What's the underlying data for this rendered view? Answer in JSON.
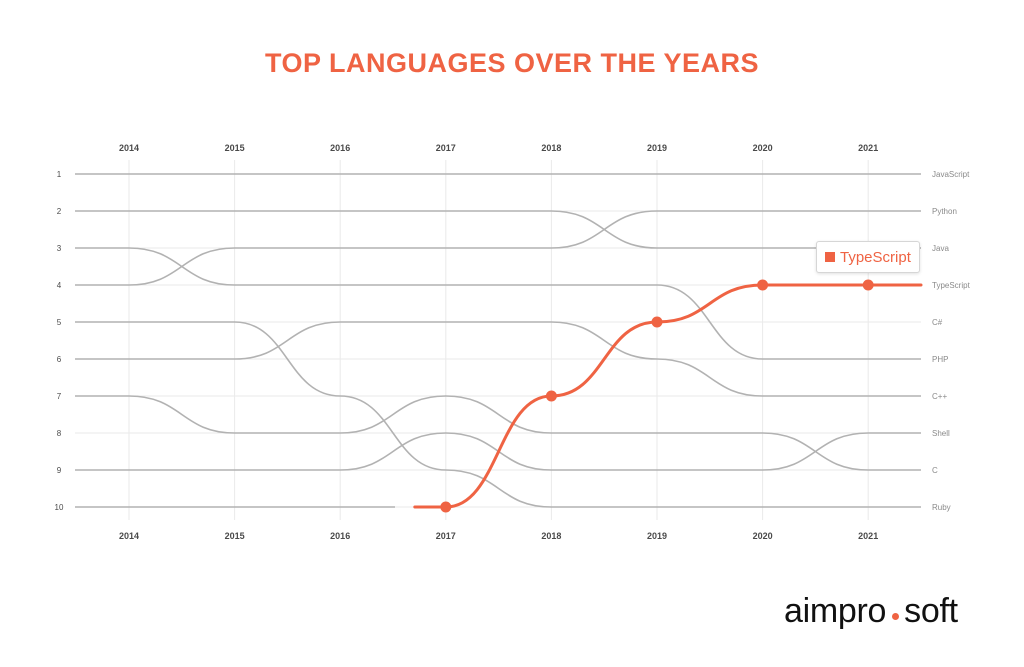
{
  "colors": {
    "accent": "#ef6343",
    "line": "#b2b2b2",
    "grid": "#eaeaea"
  },
  "logo": {
    "part1": "aimpro",
    "part2": "soft"
  },
  "tooltip": {
    "label": "TypeScript"
  },
  "chart_data": {
    "type": "line",
    "subtype": "bump",
    "title": "TOP LANGUAGES OVER THE YEARS",
    "x": [
      "2014",
      "2015",
      "2016",
      "2017",
      "2018",
      "2019",
      "2020",
      "2021"
    ],
    "y_ticks": [
      "1",
      "2",
      "3",
      "4",
      "5",
      "6",
      "7",
      "8",
      "9",
      "10"
    ],
    "ylim": [
      1,
      10
    ],
    "y_reversed": true,
    "grid": true,
    "series": [
      {
        "name": "JavaScript",
        "ranks": [
          1,
          1,
          1,
          1,
          1,
          1,
          1,
          1
        ]
      },
      {
        "name": "Python",
        "ranks": [
          2,
          2,
          2,
          2,
          2,
          3,
          3,
          3
        ]
      },
      {
        "name": "Java",
        "ranks": [
          3,
          4,
          4,
          4,
          4,
          4,
          6,
          6
        ]
      },
      {
        "name": "TypeScript",
        "ranks": [
          null,
          null,
          null,
          10,
          7,
          5,
          4,
          4
        ],
        "highlight": true
      },
      {
        "name": "C#",
        "ranks": [
          4,
          3,
          3,
          3,
          3,
          2,
          2,
          2
        ]
      },
      {
        "name": "PHP",
        "ranks": [
          5,
          5,
          7,
          9,
          10,
          10,
          10,
          10
        ]
      },
      {
        "name": "C++",
        "ranks": [
          6,
          6,
          5,
          5,
          5,
          6,
          7,
          7
        ]
      },
      {
        "name": "Shell",
        "ranks": [
          7,
          8,
          8,
          7,
          8,
          8,
          8,
          9
        ]
      },
      {
        "name": "C",
        "ranks": [
          9,
          9,
          9,
          8,
          9,
          9,
          9,
          8
        ]
      },
      {
        "name": "Ruby",
        "ranks": [
          10,
          10,
          10,
          null,
          null,
          null,
          null,
          null
        ]
      }
    ],
    "right_labels": [
      "JavaScript",
      "Python",
      "Java",
      "TypeScript",
      "C#",
      "PHP",
      "C++",
      "Shell",
      "C",
      "Ruby"
    ]
  }
}
